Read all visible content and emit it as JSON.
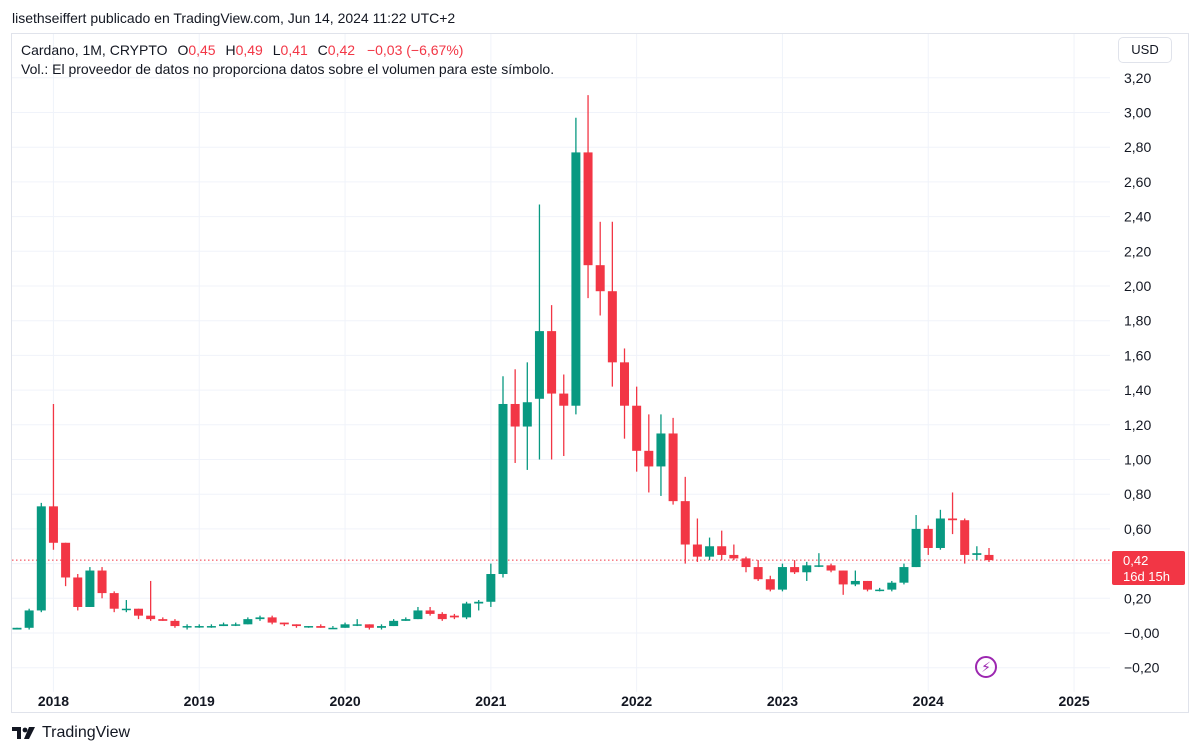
{
  "header": {
    "published": "lisethseiffert publicado en TradingView.com, Jun 14, 2024 11:22 UTC+2"
  },
  "legend": {
    "symbol": "Cardano, 1M, CRYPTO",
    "o_label": "O",
    "o_value": "0,45",
    "h_label": "H",
    "h_value": "0,49",
    "l_label": "L",
    "l_value": "0,41",
    "c_label": "C",
    "c_value": "0,42",
    "change": "−0,03 (−6,67%)",
    "volume_note": "Vol.: El proveedor de datos no proporciona datos sobre el volumen para este símbolo."
  },
  "currency_button": "USD",
  "price_tag": {
    "price": "0,42",
    "countdown": "16d 15h"
  },
  "footer": {
    "brand": "TradingView"
  },
  "colors": {
    "up": "#089981",
    "down": "#f23645",
    "grid": "#f0f3fa",
    "price_line": "#f23645",
    "flash": "#9c27b0"
  },
  "icons": {
    "flash": "lightning-icon",
    "logo": "tradingview-logo-icon"
  },
  "chart_data": {
    "type": "candlestick",
    "symbol": "Cardano",
    "interval": "1M",
    "currency": "USD",
    "y_ticks": [
      -0.2,
      0,
      0.2,
      0.4,
      0.6,
      0.8,
      1.0,
      1.2,
      1.4,
      1.6,
      1.8,
      2.0,
      2.2,
      2.4,
      2.6,
      2.8,
      3.0,
      3.2
    ],
    "y_tick_labels": [
      "−0,20",
      "−0,00",
      "0,20",
      "",
      "0,60",
      "0,80",
      "1,00",
      "1,20",
      "1,40",
      "1,60",
      "1,80",
      "2,00",
      "2,20",
      "2,40",
      "2,60",
      "2,80",
      "3,00",
      "3,20"
    ],
    "x_ticks": [
      {
        "label": "2018",
        "month_index": 3
      },
      {
        "label": "2019",
        "month_index": 15
      },
      {
        "label": "2020",
        "month_index": 27
      },
      {
        "label": "2021",
        "month_index": 39
      },
      {
        "label": "2022",
        "month_index": 51
      },
      {
        "label": "2023",
        "month_index": 63
      },
      {
        "label": "2024",
        "month_index": 75
      },
      {
        "label": "2025",
        "month_index": 87
      }
    ],
    "last_price": 0.42,
    "candles": [
      {
        "date": "2017-10",
        "o": 0.02,
        "h": 0.03,
        "l": 0.02,
        "c": 0.03
      },
      {
        "date": "2017-11",
        "o": 0.03,
        "h": 0.14,
        "l": 0.02,
        "c": 0.13
      },
      {
        "date": "2017-12",
        "o": 0.13,
        "h": 0.75,
        "l": 0.12,
        "c": 0.73
      },
      {
        "date": "2018-01",
        "o": 0.73,
        "h": 1.32,
        "l": 0.48,
        "c": 0.52
      },
      {
        "date": "2018-02",
        "o": 0.52,
        "h": 0.52,
        "l": 0.27,
        "c": 0.32
      },
      {
        "date": "2018-03",
        "o": 0.32,
        "h": 0.34,
        "l": 0.13,
        "c": 0.15
      },
      {
        "date": "2018-04",
        "o": 0.15,
        "h": 0.38,
        "l": 0.15,
        "c": 0.36
      },
      {
        "date": "2018-05",
        "o": 0.36,
        "h": 0.38,
        "l": 0.2,
        "c": 0.23
      },
      {
        "date": "2018-06",
        "o": 0.23,
        "h": 0.24,
        "l": 0.12,
        "c": 0.14
      },
      {
        "date": "2018-07",
        "o": 0.14,
        "h": 0.19,
        "l": 0.12,
        "c": 0.14
      },
      {
        "date": "2018-08",
        "o": 0.14,
        "h": 0.14,
        "l": 0.08,
        "c": 0.1
      },
      {
        "date": "2018-09",
        "o": 0.1,
        "h": 0.3,
        "l": 0.07,
        "c": 0.08
      },
      {
        "date": "2018-10",
        "o": 0.08,
        "h": 0.09,
        "l": 0.07,
        "c": 0.07
      },
      {
        "date": "2018-11",
        "o": 0.07,
        "h": 0.08,
        "l": 0.03,
        "c": 0.04
      },
      {
        "date": "2018-12",
        "o": 0.04,
        "h": 0.05,
        "l": 0.02,
        "c": 0.04
      },
      {
        "date": "2019-01",
        "o": 0.04,
        "h": 0.05,
        "l": 0.03,
        "c": 0.04
      },
      {
        "date": "2019-02",
        "o": 0.04,
        "h": 0.05,
        "l": 0.03,
        "c": 0.04
      },
      {
        "date": "2019-03",
        "o": 0.04,
        "h": 0.06,
        "l": 0.04,
        "c": 0.05
      },
      {
        "date": "2019-04",
        "o": 0.05,
        "h": 0.06,
        "l": 0.04,
        "c": 0.05
      },
      {
        "date": "2019-05",
        "o": 0.05,
        "h": 0.09,
        "l": 0.05,
        "c": 0.08
      },
      {
        "date": "2019-06",
        "o": 0.08,
        "h": 0.1,
        "l": 0.07,
        "c": 0.09
      },
      {
        "date": "2019-07",
        "o": 0.09,
        "h": 0.1,
        "l": 0.05,
        "c": 0.06
      },
      {
        "date": "2019-08",
        "o": 0.06,
        "h": 0.06,
        "l": 0.04,
        "c": 0.05
      },
      {
        "date": "2019-09",
        "o": 0.05,
        "h": 0.05,
        "l": 0.03,
        "c": 0.04
      },
      {
        "date": "2019-10",
        "o": 0.04,
        "h": 0.04,
        "l": 0.03,
        "c": 0.04
      },
      {
        "date": "2019-11",
        "o": 0.04,
        "h": 0.05,
        "l": 0.03,
        "c": 0.03
      },
      {
        "date": "2019-12",
        "o": 0.03,
        "h": 0.04,
        "l": 0.03,
        "c": 0.03
      },
      {
        "date": "2020-01",
        "o": 0.03,
        "h": 0.06,
        "l": 0.03,
        "c": 0.05
      },
      {
        "date": "2020-02",
        "o": 0.05,
        "h": 0.08,
        "l": 0.04,
        "c": 0.05
      },
      {
        "date": "2020-03",
        "o": 0.05,
        "h": 0.05,
        "l": 0.02,
        "c": 0.03
      },
      {
        "date": "2020-04",
        "o": 0.03,
        "h": 0.05,
        "l": 0.02,
        "c": 0.04
      },
      {
        "date": "2020-05",
        "o": 0.04,
        "h": 0.08,
        "l": 0.04,
        "c": 0.07
      },
      {
        "date": "2020-06",
        "o": 0.07,
        "h": 0.09,
        "l": 0.07,
        "c": 0.08
      },
      {
        "date": "2020-07",
        "o": 0.08,
        "h": 0.15,
        "l": 0.08,
        "c": 0.13
      },
      {
        "date": "2020-08",
        "o": 0.13,
        "h": 0.15,
        "l": 0.1,
        "c": 0.11
      },
      {
        "date": "2020-09",
        "o": 0.11,
        "h": 0.12,
        "l": 0.07,
        "c": 0.08
      },
      {
        "date": "2020-10",
        "o": 0.1,
        "h": 0.11,
        "l": 0.08,
        "c": 0.09
      },
      {
        "date": "2020-11",
        "o": 0.09,
        "h": 0.18,
        "l": 0.08,
        "c": 0.17
      },
      {
        "date": "2020-12",
        "o": 0.17,
        "h": 0.19,
        "l": 0.13,
        "c": 0.18
      },
      {
        "date": "2021-01",
        "o": 0.18,
        "h": 0.4,
        "l": 0.15,
        "c": 0.34
      },
      {
        "date": "2021-02",
        "o": 0.34,
        "h": 1.48,
        "l": 0.32,
        "c": 1.32
      },
      {
        "date": "2021-03",
        "o": 1.32,
        "h": 1.52,
        "l": 0.98,
        "c": 1.19
      },
      {
        "date": "2021-04",
        "o": 1.19,
        "h": 1.56,
        "l": 0.94,
        "c": 1.33
      },
      {
        "date": "2021-05",
        "o": 1.35,
        "h": 2.47,
        "l": 1.0,
        "c": 1.74
      },
      {
        "date": "2021-06",
        "o": 1.74,
        "h": 1.89,
        "l": 1.0,
        "c": 1.38
      },
      {
        "date": "2021-07",
        "o": 1.38,
        "h": 1.49,
        "l": 1.02,
        "c": 1.31
      },
      {
        "date": "2021-08",
        "o": 1.31,
        "h": 2.97,
        "l": 1.26,
        "c": 2.77
      },
      {
        "date": "2021-09",
        "o": 2.77,
        "h": 3.1,
        "l": 1.93,
        "c": 2.12
      },
      {
        "date": "2021-10",
        "o": 2.12,
        "h": 2.37,
        "l": 1.83,
        "c": 1.97
      },
      {
        "date": "2021-11",
        "o": 1.97,
        "h": 2.37,
        "l": 1.42,
        "c": 1.56
      },
      {
        "date": "2021-12",
        "o": 1.56,
        "h": 1.64,
        "l": 1.12,
        "c": 1.31
      },
      {
        "date": "2022-01",
        "o": 1.31,
        "h": 1.42,
        "l": 0.93,
        "c": 1.05
      },
      {
        "date": "2022-02",
        "o": 1.05,
        "h": 1.26,
        "l": 0.81,
        "c": 0.96
      },
      {
        "date": "2022-03",
        "o": 0.96,
        "h": 1.26,
        "l": 0.79,
        "c": 1.15
      },
      {
        "date": "2022-04",
        "o": 1.15,
        "h": 1.24,
        "l": 0.74,
        "c": 0.76
      },
      {
        "date": "2022-05",
        "o": 0.76,
        "h": 0.9,
        "l": 0.4,
        "c": 0.51
      },
      {
        "date": "2022-06",
        "o": 0.51,
        "h": 0.66,
        "l": 0.41,
        "c": 0.44
      },
      {
        "date": "2022-07",
        "o": 0.44,
        "h": 0.55,
        "l": 0.42,
        "c": 0.5
      },
      {
        "date": "2022-08",
        "o": 0.5,
        "h": 0.59,
        "l": 0.42,
        "c": 0.45
      },
      {
        "date": "2022-09",
        "o": 0.45,
        "h": 0.51,
        "l": 0.42,
        "c": 0.43
      },
      {
        "date": "2022-10",
        "o": 0.43,
        "h": 0.44,
        "l": 0.35,
        "c": 0.38
      },
      {
        "date": "2022-11",
        "o": 0.38,
        "h": 0.42,
        "l": 0.3,
        "c": 0.31
      },
      {
        "date": "2022-12",
        "o": 0.31,
        "h": 0.33,
        "l": 0.24,
        "c": 0.25
      },
      {
        "date": "2023-01",
        "o": 0.25,
        "h": 0.4,
        "l": 0.24,
        "c": 0.38
      },
      {
        "date": "2023-02",
        "o": 0.38,
        "h": 0.42,
        "l": 0.34,
        "c": 0.35
      },
      {
        "date": "2023-03",
        "o": 0.35,
        "h": 0.41,
        "l": 0.3,
        "c": 0.39
      },
      {
        "date": "2023-04",
        "o": 0.39,
        "h": 0.46,
        "l": 0.38,
        "c": 0.39
      },
      {
        "date": "2023-05",
        "o": 0.39,
        "h": 0.4,
        "l": 0.35,
        "c": 0.36
      },
      {
        "date": "2023-06",
        "o": 0.36,
        "h": 0.36,
        "l": 0.22,
        "c": 0.28
      },
      {
        "date": "2023-07",
        "o": 0.28,
        "h": 0.36,
        "l": 0.27,
        "c": 0.3
      },
      {
        "date": "2023-08",
        "o": 0.3,
        "h": 0.3,
        "l": 0.24,
        "c": 0.25
      },
      {
        "date": "2023-09",
        "o": 0.25,
        "h": 0.26,
        "l": 0.24,
        "c": 0.25
      },
      {
        "date": "2023-10",
        "o": 0.25,
        "h": 0.3,
        "l": 0.24,
        "c": 0.29
      },
      {
        "date": "2023-11",
        "o": 0.29,
        "h": 0.4,
        "l": 0.28,
        "c": 0.38
      },
      {
        "date": "2023-12",
        "o": 0.38,
        "h": 0.68,
        "l": 0.38,
        "c": 0.6
      },
      {
        "date": "2024-01",
        "o": 0.6,
        "h": 0.62,
        "l": 0.45,
        "c": 0.49
      },
      {
        "date": "2024-02",
        "o": 0.49,
        "h": 0.71,
        "l": 0.48,
        "c": 0.66
      },
      {
        "date": "2024-03",
        "o": 0.66,
        "h": 0.81,
        "l": 0.57,
        "c": 0.65
      },
      {
        "date": "2024-04",
        "o": 0.65,
        "h": 0.66,
        "l": 0.4,
        "c": 0.45
      },
      {
        "date": "2024-05",
        "o": 0.45,
        "h": 0.5,
        "l": 0.42,
        "c": 0.46
      },
      {
        "date": "2024-06",
        "o": 0.45,
        "h": 0.49,
        "l": 0.41,
        "c": 0.42
      }
    ]
  }
}
